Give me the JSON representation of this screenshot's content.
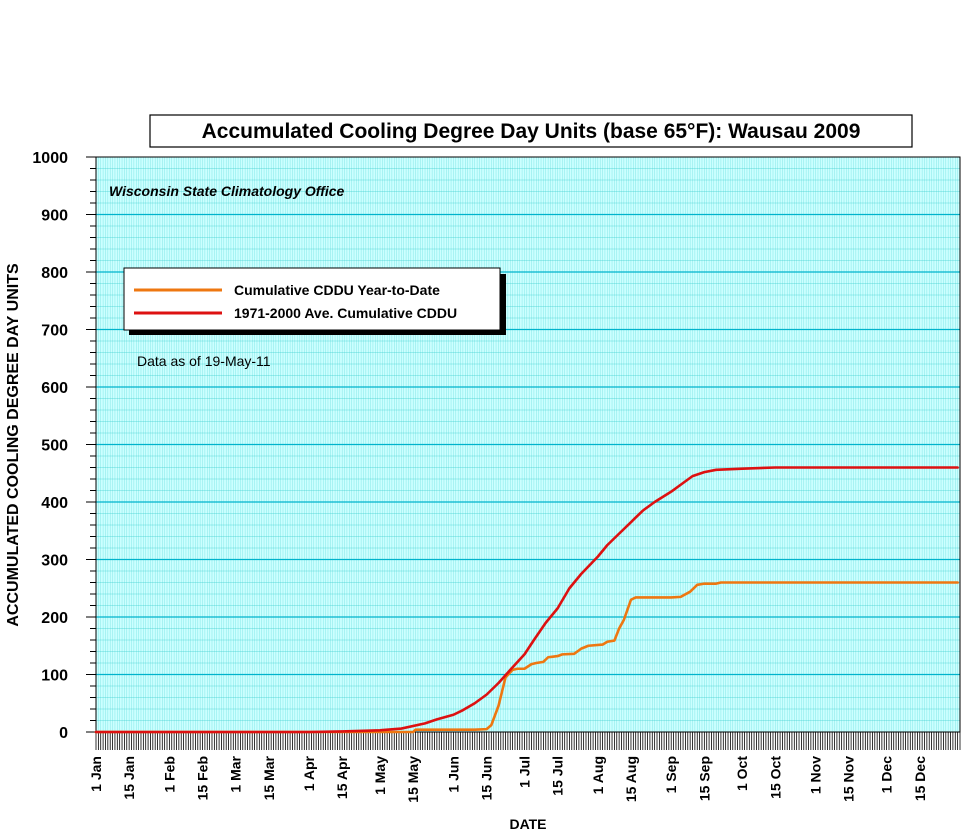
{
  "colors": {
    "plot_background": "#ccffff",
    "minor_grid": "#33cccc",
    "major_grid": "#00b3cc",
    "ytd_series": "#ee7711",
    "average_series": "#dd1111"
  },
  "chart_data": {
    "type": "line",
    "title": "Accumulated Cooling Degree Day Units (base 65°F): Wausau 2009",
    "subtitle": "Wisconsin State Climatology Office",
    "annotation": "Data as of 19-May-11",
    "xlabel": "DATE",
    "ylabel": "ACCUMULATED COOLING DEGREE DAY UNITS",
    "ylim": [
      0,
      1000
    ],
    "yticks": [
      0,
      100,
      200,
      300,
      400,
      500,
      600,
      700,
      800,
      900,
      1000
    ],
    "xlim": [
      "2009-01-01",
      "2009-12-31"
    ],
    "xticks": [
      {
        "label": "1 Jan",
        "date": "2009-01-01"
      },
      {
        "label": "15 Jan",
        "date": "2009-01-15"
      },
      {
        "label": "1 Feb",
        "date": "2009-02-01"
      },
      {
        "label": "15 Feb",
        "date": "2009-02-15"
      },
      {
        "label": "1 Mar",
        "date": "2009-03-01"
      },
      {
        "label": "15 Mar",
        "date": "2009-03-15"
      },
      {
        "label": "1 Apr",
        "date": "2009-04-01"
      },
      {
        "label": "15 Apr",
        "date": "2009-04-15"
      },
      {
        "label": "1 May",
        "date": "2009-05-01"
      },
      {
        "label": "15 May",
        "date": "2009-05-15"
      },
      {
        "label": "1 Jun",
        "date": "2009-06-01"
      },
      {
        "label": "15 Jun",
        "date": "2009-06-15"
      },
      {
        "label": "1 Jul",
        "date": "2009-07-01"
      },
      {
        "label": "15 Jul",
        "date": "2009-07-15"
      },
      {
        "label": "1 Aug",
        "date": "2009-08-01"
      },
      {
        "label": "15 Aug",
        "date": "2009-08-15"
      },
      {
        "label": "1 Sep",
        "date": "2009-09-01"
      },
      {
        "label": "15 Sep",
        "date": "2009-09-15"
      },
      {
        "label": "1 Oct",
        "date": "2009-10-01"
      },
      {
        "label": "15 Oct",
        "date": "2009-10-15"
      },
      {
        "label": "1 Nov",
        "date": "2009-11-01"
      },
      {
        "label": "15 Nov",
        "date": "2009-11-15"
      },
      {
        "label": "1 Dec",
        "date": "2009-12-01"
      },
      {
        "label": "15 Dec",
        "date": "2009-12-15"
      }
    ],
    "grid": true,
    "legend_position": "upper-left",
    "series": [
      {
        "name": "Cumulative CDDU Year-to-Date",
        "color": "#ee7711",
        "x": [
          "2009-01-01",
          "2009-05-15",
          "2009-05-16",
          "2009-06-10",
          "2009-06-15",
          "2009-06-17",
          "2009-06-20",
          "2009-06-23",
          "2009-06-26",
          "2009-06-28",
          "2009-07-01",
          "2009-07-04",
          "2009-07-06",
          "2009-07-09",
          "2009-07-11",
          "2009-07-13",
          "2009-07-15",
          "2009-07-17",
          "2009-07-22",
          "2009-07-25",
          "2009-07-28",
          "2009-08-03",
          "2009-08-05",
          "2009-08-08",
          "2009-08-10",
          "2009-08-12",
          "2009-08-15",
          "2009-08-17",
          "2009-08-22",
          "2009-09-01",
          "2009-09-05",
          "2009-09-09",
          "2009-09-12",
          "2009-09-15",
          "2009-09-18",
          "2009-09-20",
          "2009-09-22",
          "2009-12-31"
        ],
        "y": [
          0,
          0,
          4,
          4,
          5,
          12,
          45,
          95,
          108,
          110,
          110,
          118,
          120,
          122,
          130,
          131,
          132,
          135,
          136,
          145,
          150,
          152,
          157,
          159,
          180,
          195,
          230,
          234,
          234,
          234,
          235,
          244,
          256,
          258,
          258,
          258,
          260,
          260
        ]
      },
      {
        "name": "1971-2000 Ave. Cumulative CDDU",
        "color": "#dd1111",
        "x": [
          "2009-01-01",
          "2009-04-01",
          "2009-04-15",
          "2009-05-01",
          "2009-05-10",
          "2009-05-20",
          "2009-05-25",
          "2009-06-01",
          "2009-06-05",
          "2009-06-10",
          "2009-06-15",
          "2009-06-20",
          "2009-06-25",
          "2009-07-01",
          "2009-07-05",
          "2009-07-10",
          "2009-07-15",
          "2009-07-20",
          "2009-07-25",
          "2009-08-01",
          "2009-08-05",
          "2009-08-10",
          "2009-08-15",
          "2009-08-20",
          "2009-08-25",
          "2009-09-01",
          "2009-09-05",
          "2009-09-10",
          "2009-09-15",
          "2009-09-20",
          "2009-10-01",
          "2009-10-15",
          "2009-12-31"
        ],
        "y": [
          0,
          0,
          1,
          3,
          6,
          15,
          22,
          30,
          38,
          50,
          65,
          85,
          108,
          135,
          160,
          190,
          215,
          250,
          275,
          305,
          325,
          345,
          365,
          385,
          400,
          418,
          430,
          445,
          452,
          456,
          458,
          460,
          460
        ]
      }
    ]
  }
}
